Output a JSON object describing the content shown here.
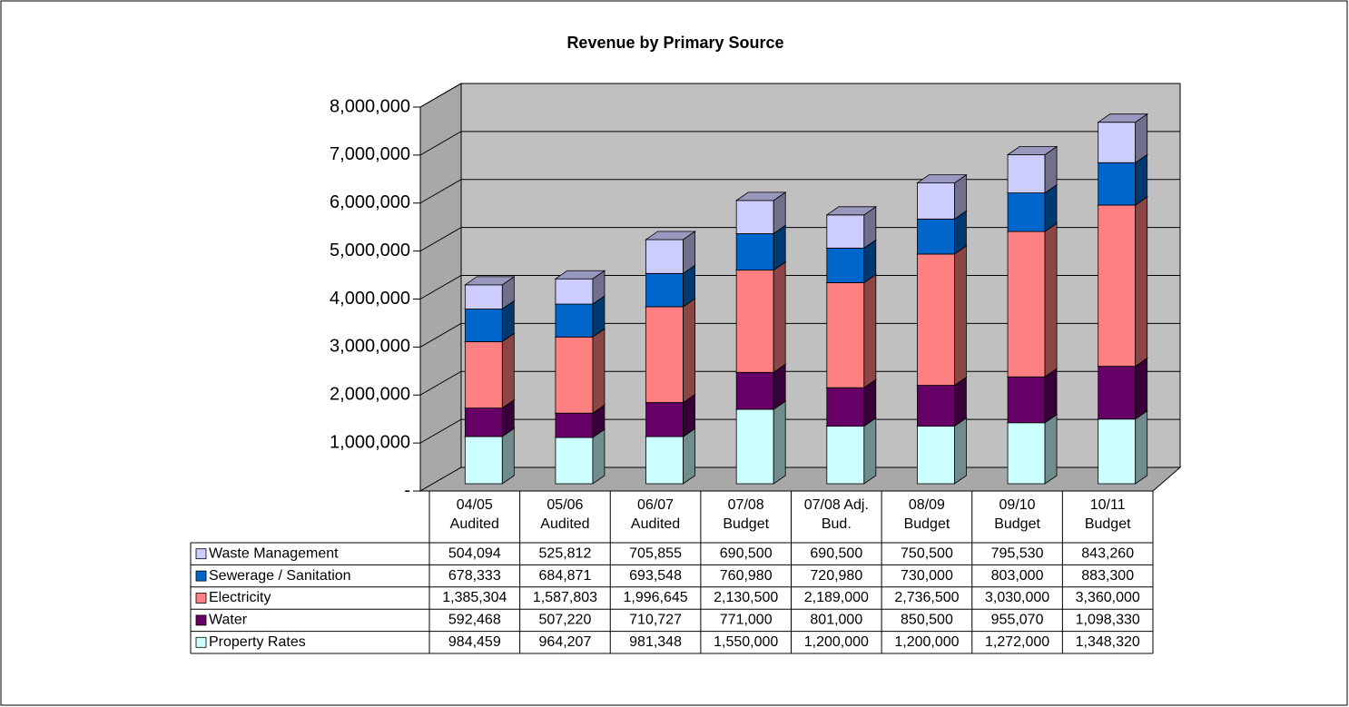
{
  "chart_data": {
    "type": "bar3d_stacked",
    "title": "Revenue by Primary Source",
    "categories": [
      "04/05\nAudited",
      "05/06\nAudited",
      "06/07\nAudited",
      "07/08\nBudget",
      "07/08 Adj.\nBud.",
      "08/09\nBudget",
      "09/10\nBudget",
      "10/11\nBudget"
    ],
    "series": [
      {
        "name": "Property Rates",
        "color": "#ccffff",
        "values": [
          984459,
          964207,
          981348,
          1550000,
          1200000,
          1200000,
          1272000,
          1348320
        ],
        "value_labels": [
          "984,459",
          "964,207",
          "981,348",
          "1,550,000",
          "1,200,000",
          "1,200,000",
          "1,272,000",
          "1,348,320"
        ]
      },
      {
        "name": "Water",
        "color": "#660066",
        "values": [
          592468,
          507220,
          710727,
          771000,
          801000,
          850500,
          955070,
          1098330
        ],
        "value_labels": [
          "592,468",
          "507,220",
          "710,727",
          "771,000",
          "801,000",
          "850,500",
          "955,070",
          "1,098,330"
        ]
      },
      {
        "name": "Electricity",
        "color": "#ff8080",
        "values": [
          1385304,
          1587803,
          1996645,
          2130500,
          2189000,
          2736500,
          3030000,
          3360000
        ],
        "value_labels": [
          "1,385,304",
          "1,587,803",
          "1,996,645",
          "2,130,500",
          "2,189,000",
          "2,736,500",
          "3,030,000",
          "3,360,000"
        ]
      },
      {
        "name": "Sewerage / Sanitation",
        "color": "#0066cc",
        "values": [
          678333,
          684871,
          693548,
          760980,
          720980,
          730000,
          803000,
          883300
        ],
        "value_labels": [
          "678,333",
          "684,871",
          "693,548",
          "760,980",
          "720,980",
          "730,000",
          "803,000",
          "883,300"
        ]
      },
      {
        "name": "Waste Management",
        "color": "#ccccff",
        "values": [
          504094,
          525812,
          705855,
          690500,
          690500,
          750500,
          795530,
          843260
        ],
        "value_labels": [
          "504,094",
          "525,812",
          "705,855",
          "690,500",
          "690,500",
          "750,500",
          "795,530",
          "843,260"
        ]
      }
    ],
    "ylim": [
      0,
      8000000
    ],
    "yticks": [
      {
        "value": 0,
        "label": "-"
      },
      {
        "value": 1000000,
        "label": "1,000,000"
      },
      {
        "value": 2000000,
        "label": "2,000,000"
      },
      {
        "value": 3000000,
        "label": "3,000,000"
      },
      {
        "value": 4000000,
        "label": "4,000,000"
      },
      {
        "value": 5000000,
        "label": "5,000,000"
      },
      {
        "value": 6000000,
        "label": "6,000,000"
      },
      {
        "value": 7000000,
        "label": "7,000,000"
      },
      {
        "value": 8000000,
        "label": "8,000,000"
      }
    ],
    "grid": true
  }
}
